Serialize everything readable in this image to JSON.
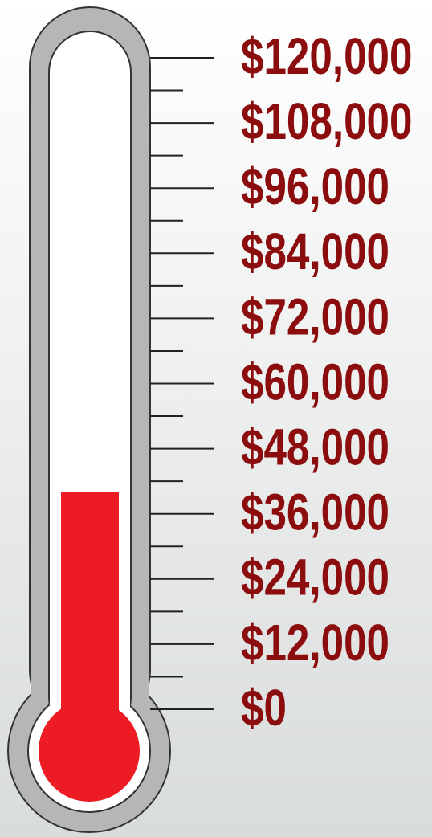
{
  "chart_data": {
    "type": "thermometer",
    "value": 40000,
    "color": "#ed1c24",
    "ylim": [
      0,
      120000
    ],
    "yticks": [
      {
        "value": 0,
        "label": "$0"
      },
      {
        "value": 12000,
        "label": "$12,000"
      },
      {
        "value": 24000,
        "label": "$24,000"
      },
      {
        "value": 36000,
        "label": "$36,000"
      },
      {
        "value": 48000,
        "label": "$48,000"
      },
      {
        "value": 60000,
        "label": "$60,000"
      },
      {
        "value": 72000,
        "label": "$72,000"
      },
      {
        "value": 84000,
        "label": "$84,000"
      },
      {
        "value": 96000,
        "label": "$96,000"
      },
      {
        "value": 108000,
        "label": "$108,000"
      },
      {
        "value": 120000,
        "label": "$120,000"
      }
    ],
    "minor_yticks": [
      6000,
      18000,
      30000,
      42000,
      54000,
      66000,
      78000,
      90000,
      102000,
      114000
    ]
  }
}
